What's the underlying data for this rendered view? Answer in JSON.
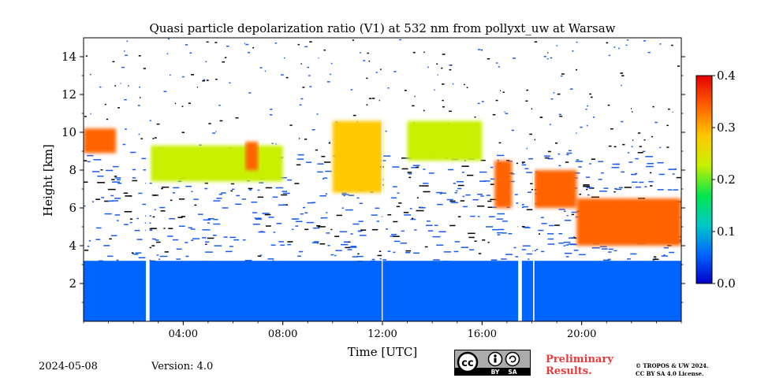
{
  "chart_data": {
    "type": "heatmap",
    "title": "Quasi particle depolarization ratio (V1) at 532 nm from pollyxt_uw at Warsaw",
    "xlabel": "Time [UTC]",
    "ylabel": "Height [km]",
    "xlim": [
      0,
      24
    ],
    "ylim": [
      0,
      15
    ],
    "x_ticks": [
      "04:00",
      "08:00",
      "12:00",
      "16:00",
      "20:00"
    ],
    "x_tick_values": [
      4,
      8,
      12,
      16,
      20
    ],
    "y_ticks": [
      "2",
      "4",
      "6",
      "8",
      "10",
      "12",
      "14"
    ],
    "y_tick_values": [
      2,
      4,
      6,
      8,
      10,
      12,
      14
    ],
    "colorbar": {
      "range": [
        0.0,
        0.4
      ],
      "ticks": [
        "0.0",
        "0.1",
        "0.2",
        "0.3",
        "0.4"
      ],
      "tick_values": [
        0.0,
        0.1,
        0.2,
        0.3,
        0.4
      ],
      "colors": [
        "#0000c8",
        "#0064ff",
        "#00c8c8",
        "#00e650",
        "#c8f000",
        "#ffc800",
        "#ff6400",
        "#e60000"
      ]
    },
    "gaps_utc": [
      [
        2.5,
        2.65
      ],
      [
        17.45,
        17.6
      ],
      [
        18.05,
        18.1
      ],
      [
        11.97,
        12.01
      ]
    ],
    "features": [
      {
        "name": "aerosol-layer",
        "t0": 0,
        "t1": 24,
        "h0": 0,
        "h1": 3.2,
        "value": 0.05
      },
      {
        "name": "cloud-layer",
        "t0": 0,
        "t1": 1.3,
        "h0": 8.9,
        "h1": 10.2,
        "value": 0.32
      },
      {
        "name": "cloud-layer",
        "t0": 2.7,
        "t1": 8.0,
        "h0": 7.4,
        "h1": 9.3,
        "value": 0.22
      },
      {
        "name": "cloud-layer",
        "t0": 6.5,
        "t1": 7.0,
        "h0": 8.0,
        "h1": 9.5,
        "value": 0.33
      },
      {
        "name": "cloud-layer",
        "t0": 10.0,
        "t1": 12.0,
        "h0": 6.8,
        "h1": 10.6,
        "value": 0.3
      },
      {
        "name": "cloud-layer",
        "t0": 13.0,
        "t1": 16.0,
        "h0": 8.5,
        "h1": 10.6,
        "value": 0.2
      },
      {
        "name": "cloud-layer",
        "t0": 16.5,
        "t1": 17.2,
        "h0": 6.0,
        "h1": 8.5,
        "value": 0.32
      },
      {
        "name": "cloud-layer",
        "t0": 18.1,
        "t1": 19.8,
        "h0": 6.0,
        "h1": 8.0,
        "value": 0.32
      },
      {
        "name": "cloud-layer",
        "t0": 19.8,
        "t1": 24.0,
        "h0": 4.0,
        "h1": 6.5,
        "value": 0.33
      }
    ]
  },
  "footer": {
    "date": "2024-05-08",
    "version": "Version: 4.0",
    "cc_by": "BY",
    "cc_sa": "SA",
    "preliminary_line1": "Preliminary",
    "preliminary_line2": "Results.",
    "copyright_line1": "© TROPOS & UW 2024.",
    "copyright_line2": "CC BY SA 4.0 License."
  }
}
